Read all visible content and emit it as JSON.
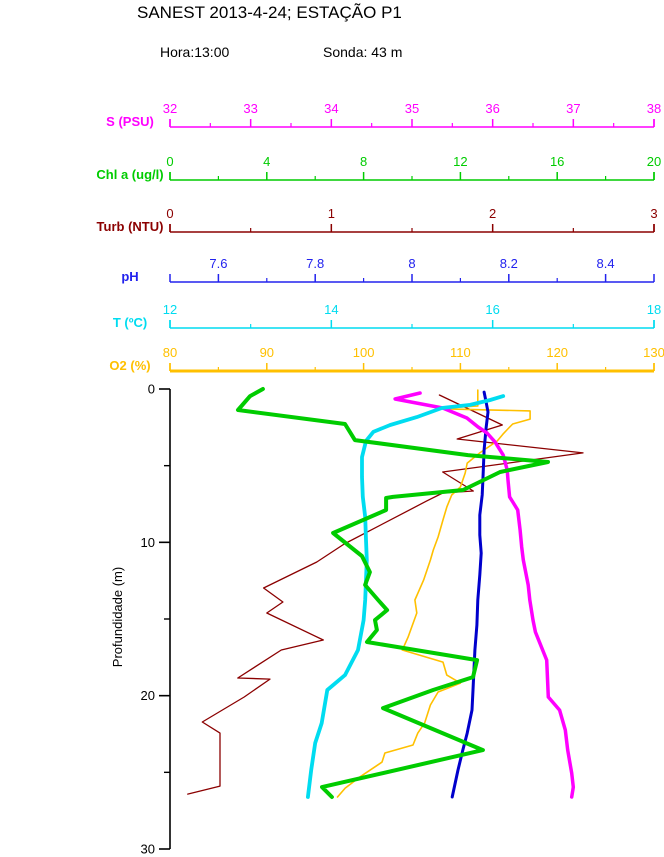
{
  "header": {
    "title": "SANEST 2013-4-24; ESTAÇÃO P1",
    "hora": "Hora:13:00",
    "sonda": "Sonda: 43 m"
  },
  "chart_data": {
    "type": "line",
    "subtype": "vertical-profile",
    "grid": false,
    "legend_position": "stacked-top-axes",
    "depth_axis": {
      "label": "Profundidade (m)",
      "min": 0,
      "max": 30,
      "major_ticks": [
        0,
        10,
        20,
        30
      ],
      "major_tick_labels": [
        "0",
        "10",
        "20",
        "30"
      ],
      "minor_ticks": [
        5,
        15,
        25
      ],
      "color": "#000000"
    },
    "value_axes": [
      {
        "id": "S",
        "label": "S (PSU)",
        "color": "#ff00ff",
        "min": 32,
        "max": 38,
        "major_ticks": [
          32,
          33,
          34,
          35,
          36,
          37,
          38
        ],
        "tick_labels": [
          "32",
          "33",
          "34",
          "35",
          "36",
          "37",
          "38"
        ],
        "minor_ticks": [
          32.5,
          33.5,
          34.5,
          35.5,
          36.5,
          37.5
        ],
        "thick": false
      },
      {
        "id": "Chl",
        "label": "Chl a (ug/l)",
        "color": "#00cc00",
        "min": 0,
        "max": 20,
        "major_ticks": [
          0,
          4,
          8,
          12,
          16,
          20
        ],
        "tick_labels": [
          "0",
          "4",
          "8",
          "12",
          "16",
          "20"
        ],
        "minor_ticks": [
          2,
          6,
          10,
          14,
          18
        ],
        "thick": false
      },
      {
        "id": "Turb",
        "label": "Turb (NTU)",
        "color": "#8b0000",
        "min": 0,
        "max": 3,
        "major_ticks": [
          0,
          1,
          2,
          3
        ],
        "tick_labels": [
          "0",
          "1",
          "2",
          "3"
        ],
        "minor_ticks": [
          0.5,
          1.5,
          2.5
        ],
        "thick": false
      },
      {
        "id": "pH",
        "label": "pH",
        "color": "#2222ee",
        "min": 7.5,
        "max": 8.5,
        "major_ticks": [
          7.6,
          7.8,
          8.0,
          8.2,
          8.4
        ],
        "tick_labels": [
          "7.6",
          "7.8",
          "8",
          "8.2",
          "8.4"
        ],
        "minor_ticks": [
          7.7,
          7.9,
          8.1,
          8.3
        ],
        "thick": false
      },
      {
        "id": "T",
        "label": "T (ºC)",
        "color": "#00dcf0",
        "min": 12,
        "max": 18,
        "major_ticks": [
          12,
          14,
          16,
          18
        ],
        "tick_labels": [
          "12",
          "14",
          "16",
          "18"
        ],
        "minor_ticks": [
          13,
          15,
          17
        ],
        "thick": false
      },
      {
        "id": "O2",
        "label": "O2 (%)",
        "color": "#ffc000",
        "min": 80,
        "max": 130,
        "major_ticks": [
          80,
          90,
          100,
          110,
          120,
          130
        ],
        "tick_labels": [
          "80",
          "90",
          "100",
          "110",
          "120",
          "130"
        ],
        "minor_ticks": [
          85,
          95,
          105,
          115,
          125
        ],
        "thick": true
      }
    ],
    "series": [
      {
        "id": "Turb",
        "name": "Turbidity profile",
        "axis": "Turb",
        "color": "#8b0000",
        "points": [
          [
            0.39,
            1.67
          ],
          [
            2.35,
            2.06
          ],
          [
            3.26,
            1.78
          ],
          [
            4.17,
            2.56
          ],
          [
            5.41,
            1.69
          ],
          [
            6.65,
            1.88
          ],
          [
            6.78,
            1.69
          ],
          [
            7.31,
            1.59
          ],
          [
            10.11,
            1.08
          ],
          [
            11.28,
            0.91
          ],
          [
            12.98,
            0.58
          ],
          [
            13.89,
            0.7
          ],
          [
            14.61,
            0.6
          ],
          [
            16.37,
            0.95
          ],
          [
            17.02,
            0.69
          ],
          [
            18.85,
            0.42
          ],
          [
            18.92,
            0.62
          ],
          [
            20.09,
            0.46
          ],
          [
            21.72,
            0.2
          ],
          [
            22.44,
            0.31
          ],
          [
            25.9,
            0.31
          ],
          [
            26.42,
            0.11
          ]
        ]
      },
      {
        "id": "O2",
        "name": "Oxygen saturation profile",
        "axis": "O2",
        "color": "#ffc000",
        "points": [
          [
            0.07,
            111.8
          ],
          [
            1.11,
            111.8
          ],
          [
            1.24,
            108.6
          ],
          [
            1.3,
            108.6
          ],
          [
            1.43,
            117.2
          ],
          [
            1.96,
            117.2
          ],
          [
            2.28,
            115.4
          ],
          [
            2.61,
            114.9
          ],
          [
            2.94,
            114.4
          ],
          [
            3.39,
            113.8
          ],
          [
            4.17,
            112.0
          ],
          [
            4.83,
            110.7
          ],
          [
            5.48,
            110.5
          ],
          [
            6.39,
            110.0
          ],
          [
            6.91,
            109.1
          ],
          [
            7.7,
            108.6
          ],
          [
            8.54,
            108.2
          ],
          [
            9.65,
            107.7
          ],
          [
            10.5,
            107.2
          ],
          [
            11.15,
            106.9
          ],
          [
            12.46,
            106.2
          ],
          [
            13.76,
            105.3
          ],
          [
            14.61,
            105.5
          ],
          [
            16.18,
            104.6
          ],
          [
            17.02,
            104.0
          ],
          [
            17.81,
            108.2
          ],
          [
            18.66,
            108.6
          ],
          [
            19.18,
            110.0
          ],
          [
            19.76,
            107.7
          ],
          [
            20.61,
            106.9
          ],
          [
            21.79,
            106.3
          ],
          [
            22.44,
            105.6
          ],
          [
            23.22,
            105.1
          ],
          [
            23.74,
            102.2
          ],
          [
            24.33,
            101.9
          ],
          [
            25.31,
            99.6
          ],
          [
            26.03,
            98.1
          ],
          [
            26.61,
            97.3
          ]
        ]
      },
      {
        "id": "pH",
        "name": "pH profile",
        "axis": "pH",
        "color": "#0000cc",
        "points": [
          [
            0.2,
            8.149
          ],
          [
            0.85,
            8.153
          ],
          [
            1.5,
            8.157
          ],
          [
            2.54,
            8.153
          ],
          [
            3.98,
            8.149
          ],
          [
            5.61,
            8.147
          ],
          [
            6.91,
            8.145
          ],
          [
            8.22,
            8.14
          ],
          [
            9.52,
            8.14
          ],
          [
            10.7,
            8.143
          ],
          [
            12.13,
            8.14
          ],
          [
            13.76,
            8.136
          ],
          [
            15.39,
            8.134
          ],
          [
            17.02,
            8.13
          ],
          [
            19.63,
            8.126
          ],
          [
            20.94,
            8.124
          ],
          [
            22.44,
            8.114
          ],
          [
            23.55,
            8.105
          ],
          [
            24.85,
            8.095
          ],
          [
            26.61,
            8.083
          ]
        ]
      },
      {
        "id": "S",
        "name": "Salinity profile",
        "axis": "S",
        "color": "#ff00ff",
        "points": [
          [
            0.26,
            35.1
          ],
          [
            0.65,
            34.79
          ],
          [
            1.24,
            35.38
          ],
          [
            1.89,
            35.68
          ],
          [
            2.48,
            35.82
          ],
          [
            2.87,
            35.93
          ],
          [
            3.46,
            36.03
          ],
          [
            4.31,
            36.13
          ],
          [
            5.28,
            36.18
          ],
          [
            5.94,
            36.19
          ],
          [
            7.04,
            36.21
          ],
          [
            7.37,
            36.25
          ],
          [
            7.89,
            36.31
          ],
          [
            9.2,
            36.34
          ],
          [
            10.31,
            36.36
          ],
          [
            11.15,
            36.38
          ],
          [
            12.78,
            36.44
          ],
          [
            13.76,
            36.46
          ],
          [
            15.07,
            36.5
          ],
          [
            15.85,
            36.53
          ],
          [
            17.68,
            36.67
          ],
          [
            20.09,
            36.69
          ],
          [
            20.94,
            36.83
          ],
          [
            22.24,
            36.9
          ],
          [
            23.55,
            36.93
          ],
          [
            25.05,
            36.98
          ],
          [
            25.96,
            37.0
          ],
          [
            26.61,
            36.98
          ]
        ]
      },
      {
        "id": "T",
        "name": "Temperature profile",
        "axis": "T",
        "color": "#00dcf0",
        "points": [
          [
            0.46,
            16.13
          ],
          [
            0.72,
            15.97
          ],
          [
            1.04,
            15.72
          ],
          [
            1.24,
            15.37
          ],
          [
            1.83,
            15.06
          ],
          [
            2.35,
            14.73
          ],
          [
            2.8,
            14.52
          ],
          [
            3.39,
            14.43
          ],
          [
            4.44,
            14.38
          ],
          [
            5.74,
            14.38
          ],
          [
            7.04,
            14.39
          ],
          [
            8.35,
            14.42
          ],
          [
            9.85,
            14.43
          ],
          [
            11.15,
            14.44
          ],
          [
            12.46,
            14.43
          ],
          [
            13.76,
            14.42
          ],
          [
            15.07,
            14.4
          ],
          [
            17.02,
            14.33
          ],
          [
            18.66,
            14.17
          ],
          [
            19.63,
            13.95
          ],
          [
            21.79,
            13.88
          ],
          [
            23.09,
            13.8
          ],
          [
            24.85,
            13.75
          ],
          [
            26.61,
            13.71
          ]
        ]
      },
      {
        "id": "Chl",
        "name": "Chlorophyll a profile",
        "axis": "Chl",
        "color": "#00cc00",
        "points": [
          [
            0.0,
            3.84
          ],
          [
            0.46,
            3.31
          ],
          [
            1.37,
            2.81
          ],
          [
            2.28,
            7.23
          ],
          [
            3.33,
            7.64
          ],
          [
            4.31,
            12.31
          ],
          [
            4.76,
            15.62
          ],
          [
            5.41,
            13.64
          ],
          [
            6.59,
            12.11
          ],
          [
            7.04,
            9.21
          ],
          [
            7.11,
            8.93
          ],
          [
            7.89,
            8.93
          ],
          [
            9.39,
            6.74
          ],
          [
            10.89,
            7.93
          ],
          [
            11.94,
            8.26
          ],
          [
            12.78,
            8.06
          ],
          [
            13.76,
            8.6
          ],
          [
            14.42,
            8.97
          ],
          [
            15.07,
            8.47
          ],
          [
            15.72,
            8.55
          ],
          [
            16.5,
            8.14
          ],
          [
            17.68,
            12.69
          ],
          [
            18.79,
            12.52
          ],
          [
            19.63,
            10.87
          ],
          [
            20.81,
            8.8
          ],
          [
            23.55,
            12.93
          ],
          [
            25.96,
            6.28
          ],
          [
            26.61,
            6.69
          ]
        ]
      }
    ]
  }
}
